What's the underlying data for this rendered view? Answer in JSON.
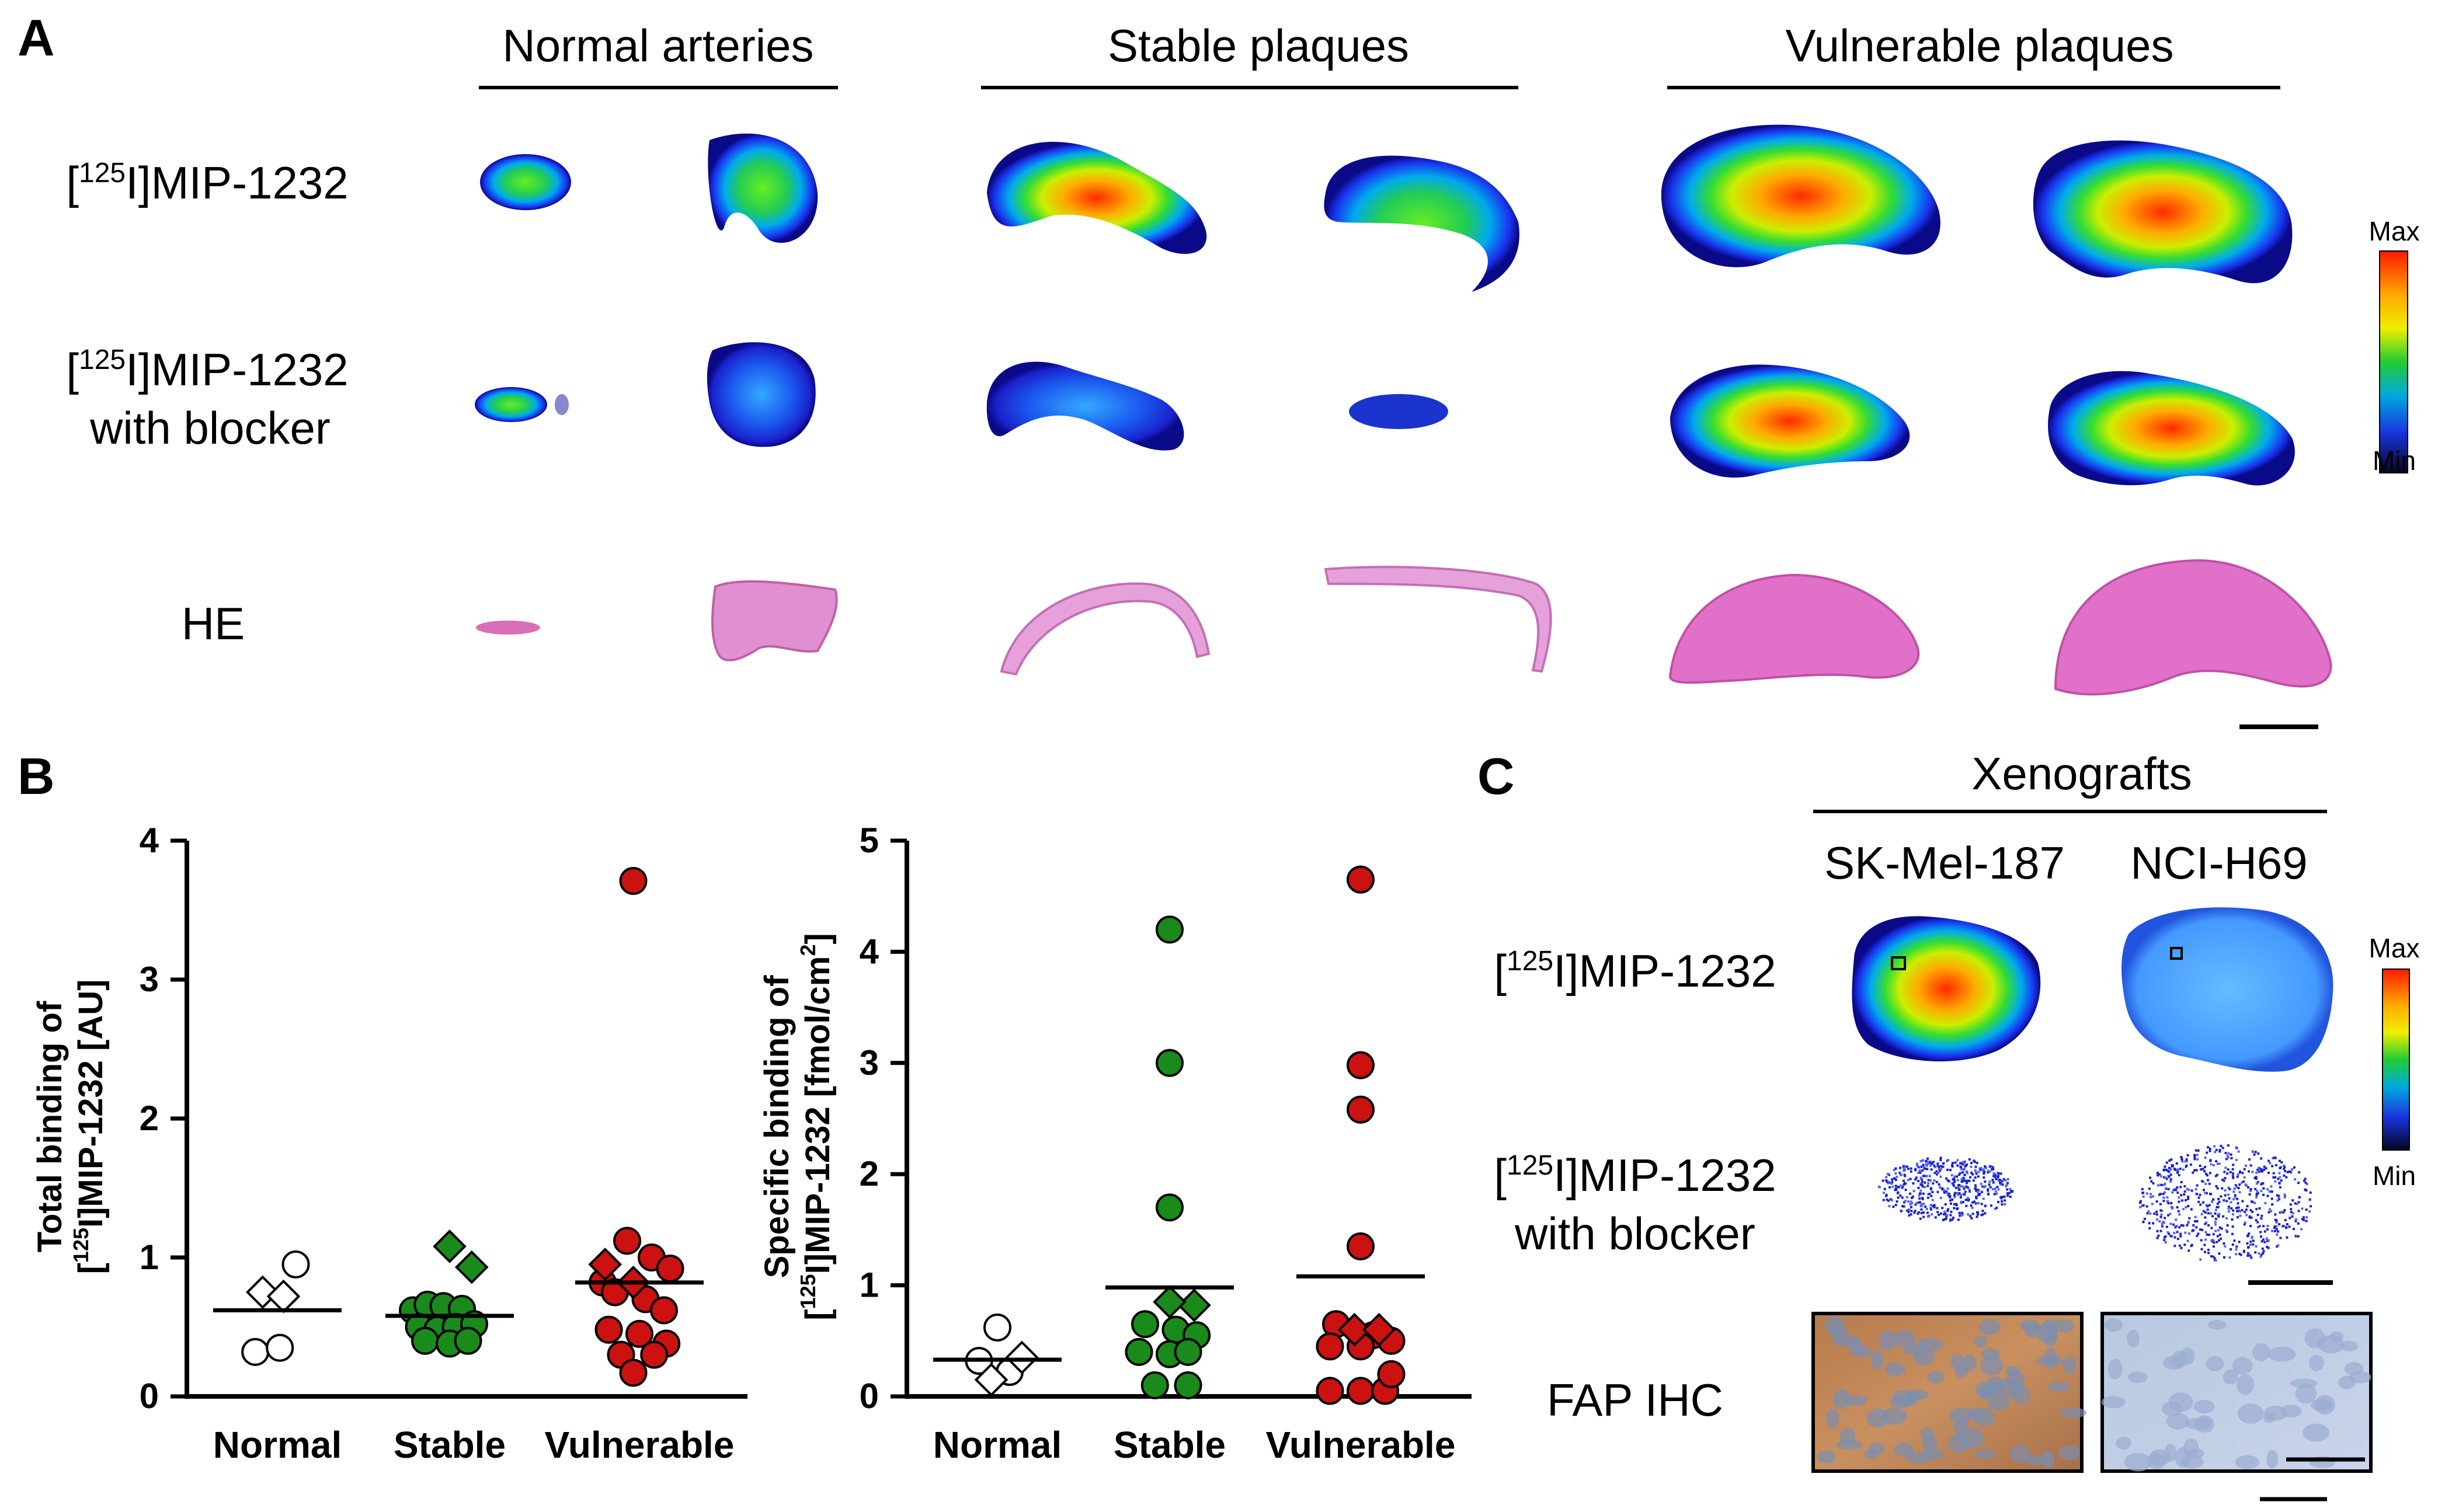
{
  "panel_a": {
    "letter": "A",
    "column_headers": [
      "Normal arteries",
      "Stable plaques",
      "Vulnerable plaques"
    ],
    "row_labels": {
      "tracer_sup": "125",
      "tracer_rest": "I]MIP-1232",
      "bracket_open": "[",
      "with_blocker": "with blocker",
      "he": "HE"
    },
    "colorbar": {
      "max_label": "Max",
      "min_label": "Min"
    }
  },
  "panel_b": {
    "letter": "B"
  },
  "panel_c": {
    "letter": "C",
    "header": "Xenografts",
    "columns": [
      "SK-Mel-187",
      "NCI-H69"
    ],
    "row_labels": {
      "bracket_open": "[",
      "tracer_sup": "125",
      "tracer_rest": "I]MIP-1232",
      "with_blocker": "with blocker",
      "ihc": "FAP IHC"
    },
    "colorbar": {
      "max_label": "Max",
      "min_label": "Min"
    }
  },
  "chart_data": [
    {
      "type": "scatter",
      "panel": "B-left",
      "ylabel_line1": "Total binding of",
      "ylabel_line2_bracket": "[",
      "ylabel_line2_sup": "125",
      "ylabel_line2_rest": "I]MIP-1232 [AU]",
      "categories": [
        "Normal",
        "Stable",
        "Vulnerable"
      ],
      "ylim": [
        0,
        4
      ],
      "yticks": [
        "0",
        "1",
        "2",
        "3",
        "4"
      ],
      "series": [
        {
          "name": "Normal",
          "color": "#ffffff",
          "stroke": "#000000",
          "circles": [
            [
              0.15,
              0.95
            ],
            [
              -0.18,
              0.32
            ],
            [
              0.02,
              0.35
            ]
          ],
          "diamonds": [
            [
              -0.12,
              0.75
            ],
            [
              0.05,
              0.72
            ]
          ],
          "mean": 0.62
        },
        {
          "name": "Stable",
          "color": "#1a8a1a",
          "stroke": "#000000",
          "circles": [
            [
              -0.3,
              0.62
            ],
            [
              -0.18,
              0.66
            ],
            [
              -0.05,
              0.65
            ],
            [
              0.1,
              0.63
            ],
            [
              -0.25,
              0.5
            ],
            [
              -0.1,
              0.48
            ],
            [
              0.05,
              0.5
            ],
            [
              0.2,
              0.52
            ],
            [
              -0.2,
              0.4
            ],
            [
              0.0,
              0.38
            ],
            [
              0.15,
              0.4
            ]
          ],
          "diamonds": [
            [
              0.0,
              1.08
            ],
            [
              0.18,
              0.93
            ]
          ],
          "mean": 0.58
        },
        {
          "name": "Vulnerable",
          "color": "#cc1111",
          "stroke": "#000000",
          "circles": [
            [
              -0.05,
              3.71
            ],
            [
              -0.1,
              1.12
            ],
            [
              0.1,
              1.0
            ],
            [
              0.25,
              0.92
            ],
            [
              -0.3,
              0.82
            ],
            [
              -0.2,
              0.75
            ],
            [
              0.05,
              0.7
            ],
            [
              0.2,
              0.62
            ],
            [
              -0.25,
              0.48
            ],
            [
              0.0,
              0.45
            ],
            [
              0.22,
              0.38
            ],
            [
              -0.15,
              0.3
            ],
            [
              0.12,
              0.3
            ],
            [
              -0.05,
              0.17
            ]
          ],
          "diamonds": [
            [
              -0.28,
              0.95
            ],
            [
              -0.05,
              0.82
            ]
          ],
          "mean": 0.82
        }
      ]
    },
    {
      "type": "scatter",
      "panel": "B-right",
      "ylabel_line1": "Specific binding of",
      "ylabel_line2_bracket": "[",
      "ylabel_line2_sup": "125",
      "ylabel_line2_rest": "I]MIP-1232 [fmol/cm",
      "ylabel_line2_sup2": "2",
      "ylabel_line2_end": "]",
      "categories": [
        "Normal",
        "Stable",
        "Vulnerable"
      ],
      "ylim": [
        0,
        5
      ],
      "yticks": [
        "0",
        "1",
        "2",
        "3",
        "4",
        "5"
      ],
      "series": [
        {
          "name": "Normal",
          "color": "#ffffff",
          "stroke": "#000000",
          "circles": [
            [
              0.0,
              0.62
            ],
            [
              0.1,
              0.22
            ],
            [
              -0.15,
              0.32
            ]
          ],
          "diamonds": [
            [
              -0.05,
              0.15
            ],
            [
              0.2,
              0.35
            ]
          ],
          "mean": 0.33
        },
        {
          "name": "Stable",
          "color": "#1a8a1a",
          "stroke": "#000000",
          "circles": [
            [
              0.0,
              4.2
            ],
            [
              0.0,
              3.0
            ],
            [
              0.0,
              1.7
            ],
            [
              -0.2,
              0.65
            ],
            [
              0.05,
              0.6
            ],
            [
              0.22,
              0.55
            ],
            [
              -0.25,
              0.4
            ],
            [
              0.0,
              0.38
            ],
            [
              0.15,
              0.4
            ],
            [
              -0.12,
              0.1
            ],
            [
              0.15,
              0.1
            ]
          ],
          "diamonds": [
            [
              0.2,
              0.82
            ],
            [
              0.0,
              0.85
            ]
          ],
          "mean": 0.98
        },
        {
          "name": "Vulnerable",
          "color": "#cc1111",
          "stroke": "#000000",
          "circles": [
            [
              0.0,
              4.65
            ],
            [
              0.0,
              2.98
            ],
            [
              0.0,
              2.58
            ],
            [
              0.0,
              1.35
            ],
            [
              -0.2,
              0.65
            ],
            [
              0.1,
              0.55
            ],
            [
              0.25,
              0.5
            ],
            [
              -0.25,
              0.45
            ],
            [
              0.0,
              0.45
            ],
            [
              -0.25,
              0.05
            ],
            [
              0.0,
              0.05
            ],
            [
              0.2,
              0.05
            ],
            [
              0.25,
              0.2
            ]
          ],
          "diamonds": [
            [
              -0.05,
              0.6
            ],
            [
              0.15,
              0.6
            ]
          ],
          "mean": 1.08
        }
      ]
    }
  ]
}
